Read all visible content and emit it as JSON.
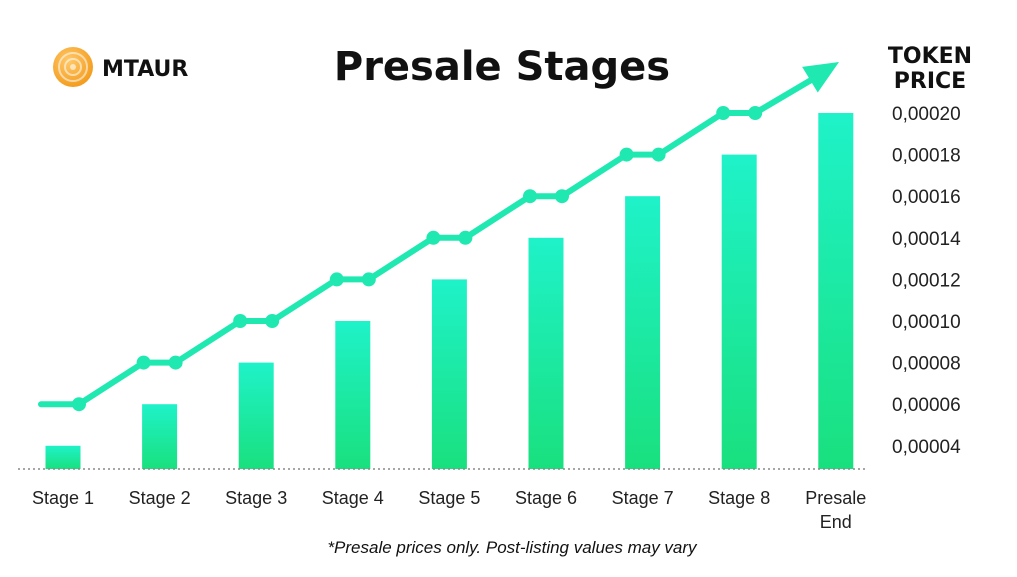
{
  "brand": {
    "name": "MTAUR",
    "logo_icon": "mtaur-coin-icon"
  },
  "colors": {
    "bar_top": "#1ff2c9",
    "bar_bottom": "#19e07e",
    "line": "#1fe9b0",
    "baseline": "#888888",
    "coin_outer": "#f39a1a",
    "coin_inner": "#ffc86a"
  },
  "footnote": "*Presale prices only. Post-listing values may vary",
  "chart_data": {
    "type": "bar",
    "title": "Presale Stages",
    "ylabel": "TOKEN PRICE",
    "ylabel_lines": [
      "TOKEN",
      "PRICE"
    ],
    "xlabel": "",
    "categories": [
      "Stage 1",
      "Stage 2",
      "Stage 3",
      "Stage 4",
      "Stage 5",
      "Stage 6",
      "Stage 7",
      "Stage 8",
      "Presale End"
    ],
    "category_lines": [
      [
        "Stage 1"
      ],
      [
        "Stage 2"
      ],
      [
        "Stage 3"
      ],
      [
        "Stage 4"
      ],
      [
        "Stage 5"
      ],
      [
        "Stage 6"
      ],
      [
        "Stage 7"
      ],
      [
        "Stage 8"
      ],
      [
        "Presale",
        "End"
      ]
    ],
    "values": [
      4e-05,
      6e-05,
      8e-05,
      0.0001,
      0.00012,
      0.00014,
      0.00016,
      0.00018,
      0.0002
    ],
    "y_ticks": [
      4e-05,
      6e-05,
      8e-05,
      0.0001,
      0.00012,
      0.00014,
      0.00016,
      0.00018,
      0.0002
    ],
    "y_tick_labels": [
      "0,00004",
      "0,00006",
      "0,00008",
      "0,00010",
      "0,00012",
      "0,00014",
      "0,00016",
      "0,00018",
      "0,00020"
    ],
    "trend_values": [
      6e-05,
      8e-05,
      0.0001,
      0.00012,
      0.00014,
      0.00016,
      0.00018,
      0.0002
    ],
    "legend": "none",
    "grid": false
  }
}
